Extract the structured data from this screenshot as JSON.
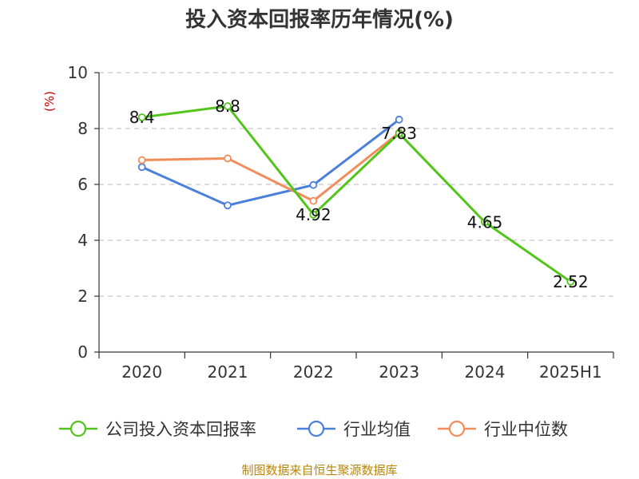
{
  "chart_data": {
    "type": "line",
    "title": "投入资本回报率历年情况(%)",
    "ylabel": "(%)",
    "xlabel": "",
    "categories": [
      "2020",
      "2021",
      "2022",
      "2023",
      "2024",
      "2025H1"
    ],
    "ylim": [
      0,
      10
    ],
    "yticks": [
      0,
      2,
      4,
      6,
      8,
      10
    ],
    "grid": "horizontal-dashed",
    "legend_position": "bottom",
    "series": [
      {
        "name": "公司投入资本回报率",
        "color": "#52c41a",
        "values": [
          8.4,
          8.8,
          4.92,
          7.83,
          4.65,
          2.52
        ],
        "labels": [
          "8.4",
          "8.8",
          "4.92",
          "7.83",
          "4.65",
          "2.52"
        ]
      },
      {
        "name": "行业均值",
        "color": "#4a7fdb",
        "values": [
          6.62,
          5.25,
          5.98,
          8.32,
          null,
          null
        ]
      },
      {
        "name": "行业中位数",
        "color": "#f28c5a",
        "values": [
          6.87,
          6.93,
          5.41,
          7.85,
          null,
          null
        ]
      }
    ],
    "source": "制图数据来自恒生聚源数据库"
  }
}
